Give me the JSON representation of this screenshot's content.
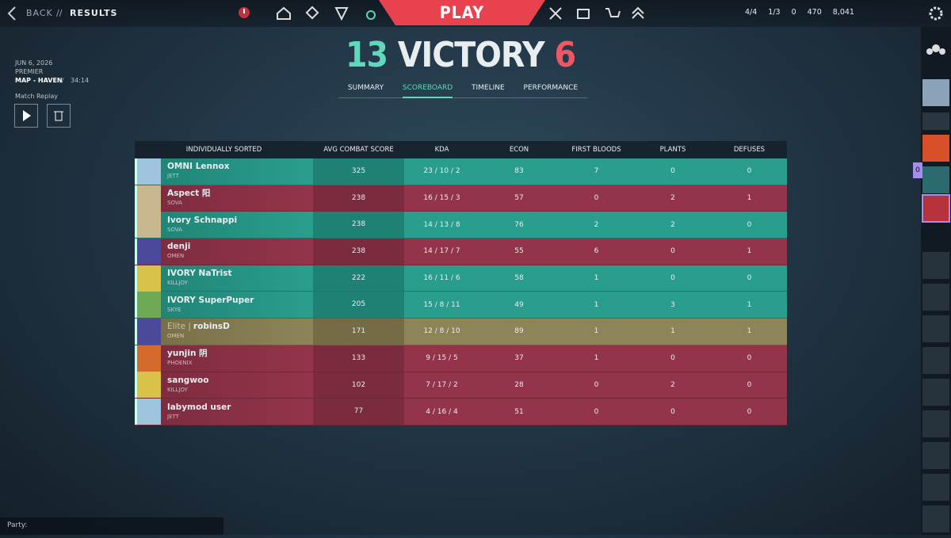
{
  "header": {
    "back": "BACK",
    "separator": "//",
    "page": "RESULTS",
    "play": "PLAY",
    "currencies": [
      "4/4",
      "1/3",
      "0",
      "470",
      "8,041"
    ]
  },
  "match": {
    "date": "JUN 6, 2026",
    "mode": "PREMIER",
    "map": "MAP - HAVEN",
    "separator": "//",
    "duration": "34:14",
    "replay": "Match Replay"
  },
  "score": {
    "team": "13",
    "result": "VICTORY",
    "enemy": "6"
  },
  "tabs": [
    "SUMMARY",
    "SCOREBOARD",
    "TIMELINE",
    "PERFORMANCE"
  ],
  "active_tab": 1,
  "table": {
    "columns": [
      "INDIVIDUALLY SORTED",
      "AVG COMBAT SCORE",
      "KDA",
      "ECON",
      "FIRST BLOODS",
      "PLANTS",
      "DEFUSES"
    ],
    "rows": [
      {
        "side": "ally",
        "name": "OMNI Lennox",
        "agent": "JETT",
        "acs": "325",
        "kda": "23 / 10 / 2",
        "econ": "83",
        "first_bloods": "7",
        "plants": "0",
        "defuses": "0"
      },
      {
        "side": "enemy",
        "name": "Aspect 阳",
        "agent": "SOVA",
        "acs": "238",
        "kda": "16 / 15 / 3",
        "econ": "57",
        "first_bloods": "0",
        "plants": "2",
        "defuses": "1"
      },
      {
        "side": "ally",
        "name": "Ivory Schnappi",
        "agent": "SOVA",
        "acs": "238",
        "kda": "14 / 13 / 8",
        "econ": "76",
        "first_bloods": "2",
        "plants": "2",
        "defuses": "0"
      },
      {
        "side": "enemy",
        "name": "denji",
        "agent": "OMEN",
        "acs": "238",
        "kda": "14 / 17 / 7",
        "econ": "55",
        "first_bloods": "6",
        "plants": "0",
        "defuses": "1"
      },
      {
        "side": "ally",
        "name": "IVORY NaTrist",
        "agent": "KILLJOY",
        "acs": "222",
        "kda": "16 / 11 / 6",
        "econ": "58",
        "first_bloods": "1",
        "plants": "0",
        "defuses": "0"
      },
      {
        "side": "ally",
        "name": "IVORY SuperPuper",
        "agent": "SKYE",
        "acs": "205",
        "kda": "15 / 8 / 11",
        "econ": "49",
        "first_bloods": "1",
        "plants": "3",
        "defuses": "1"
      },
      {
        "side": "self",
        "tag": "Elite |",
        "name": "robinsD",
        "agent": "OMEN",
        "acs": "171",
        "kda": "12 / 8 / 10",
        "econ": "89",
        "first_bloods": "1",
        "plants": "1",
        "defuses": "1"
      },
      {
        "side": "enemy",
        "name": "yunjin 阴",
        "agent": "PHOENIX",
        "acs": "133",
        "kda": "9 / 15 / 5",
        "econ": "37",
        "first_bloods": "1",
        "plants": "0",
        "defuses": "0"
      },
      {
        "side": "enemy",
        "name": "sangwoo",
        "agent": "KILLJOY",
        "acs": "102",
        "kda": "7 / 17 / 2",
        "econ": "28",
        "first_bloods": "0",
        "plants": "2",
        "defuses": "0"
      },
      {
        "side": "enemy",
        "name": "labymod user",
        "agent": "JETT",
        "acs": "77",
        "kda": "4 / 16 / 4",
        "econ": "51",
        "first_bloods": "0",
        "plants": "0",
        "defuses": "0"
      }
    ]
  },
  "sidebar": {
    "badge": "0"
  },
  "party": {
    "label": "Party:"
  }
}
